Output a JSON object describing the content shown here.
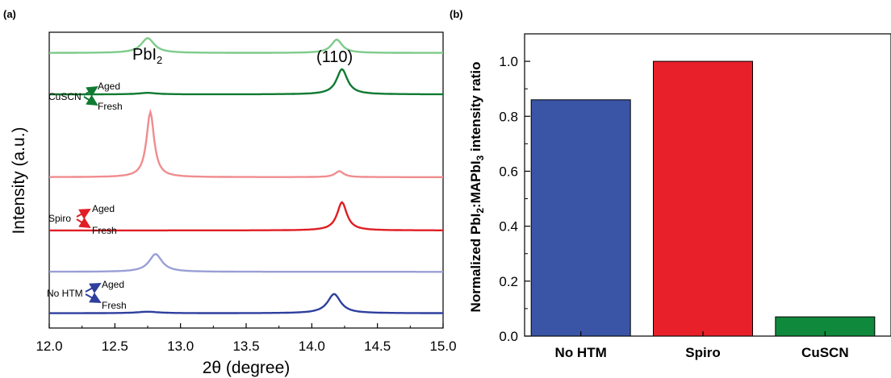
{
  "chart_data": [
    {
      "panel": "(a)",
      "type": "line",
      "xlabel": "2θ (degree)",
      "ylabel": "Intensity (a.u.)",
      "xlim": [
        12.0,
        15.0
      ],
      "x_ticks": [
        "12.0",
        "12.5",
        "13.0",
        "13.5",
        "14.0",
        "14.5",
        "15.0"
      ],
      "annotations": {
        "pbi2_peak": "PbI",
        "pbi2_sub": "2",
        "plane_peak": "(110)"
      },
      "groups": [
        {
          "name": "CuSCN",
          "aged_label": "Aged",
          "fresh_label": "Fresh",
          "color": "#0f7a32"
        },
        {
          "name": "Spiro",
          "aged_label": "Aged",
          "fresh_label": "Fresh",
          "color": "#e01e24"
        },
        {
          "name": "No HTM",
          "aged_label": "Aged",
          "fresh_label": "Fresh",
          "color": "#2e3f9e"
        }
      ],
      "series": [
        {
          "color": "#7ecb8a",
          "baseline": 0.93,
          "peaks": [
            {
              "x": 12.75,
              "h": 0.05,
              "w": 0.06
            },
            {
              "x": 14.19,
              "h": 0.045,
              "w": 0.05
            }
          ]
        },
        {
          "color": "#0f7a32",
          "baseline": 0.79,
          "peaks": [
            {
              "x": 12.75,
              "h": 0.005,
              "w": 0.08
            },
            {
              "x": 14.23,
              "h": 0.085,
              "w": 0.05
            }
          ]
        },
        {
          "color": "#f08c8e",
          "baseline": 0.51,
          "peaks": [
            {
              "x": 12.77,
              "h": 0.22,
              "w": 0.035
            },
            {
              "x": 14.21,
              "h": 0.02,
              "w": 0.04
            }
          ]
        },
        {
          "color": "#e01e24",
          "baseline": 0.33,
          "peaks": [
            {
              "x": 14.23,
              "h": 0.095,
              "w": 0.045
            }
          ]
        },
        {
          "color": "#9a9fd6",
          "baseline": 0.19,
          "peaks": [
            {
              "x": 12.81,
              "h": 0.06,
              "w": 0.06
            }
          ]
        },
        {
          "color": "#2e3f9e",
          "baseline": 0.05,
          "peaks": [
            {
              "x": 12.75,
              "h": 0.005,
              "w": 0.1
            },
            {
              "x": 14.17,
              "h": 0.065,
              "w": 0.06
            }
          ]
        }
      ]
    },
    {
      "panel": "(b)",
      "type": "bar",
      "categories": [
        "No HTM",
        "Spiro",
        "CuSCN"
      ],
      "values": [
        0.86,
        1.0,
        0.07
      ],
      "colors": [
        "#3a55a6",
        "#e8202a",
        "#0f8a3c"
      ],
      "ylabel_parts": [
        "Normalized PbI",
        "2",
        ":MAPbI",
        "3",
        " intensity ratio"
      ],
      "ylim": [
        0,
        1.1
      ],
      "y_ticks": [
        "0.0",
        "0.2",
        "0.4",
        "0.6",
        "0.8",
        "1.0"
      ]
    }
  ]
}
